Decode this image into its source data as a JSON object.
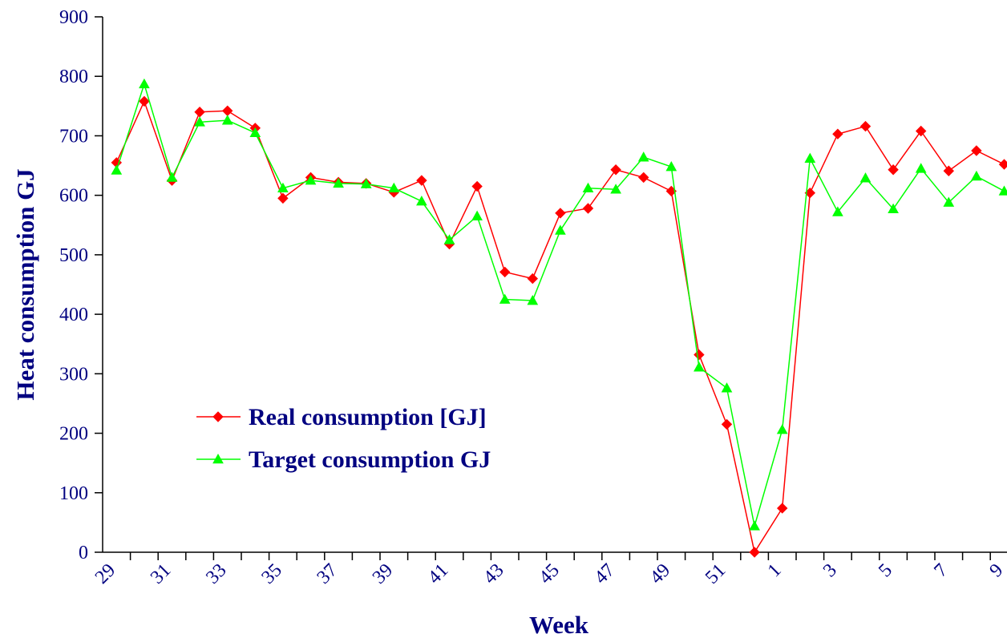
{
  "chart_data": {
    "type": "line",
    "xlabel": "Week",
    "ylabel": "Heat consumption GJ",
    "categories": [
      "29",
      null,
      "31",
      null,
      "33",
      null,
      "35",
      null,
      "37",
      null,
      "39",
      null,
      "41",
      null,
      "43",
      null,
      "45",
      null,
      "47",
      null,
      "49",
      null,
      "51",
      null,
      "1",
      null,
      "3",
      null,
      "5",
      null,
      "7",
      null,
      "9"
    ],
    "series": [
      {
        "name": "Real consumption [GJ]",
        "color": "#ff0000",
        "marker": "diamond",
        "values": [
          655,
          758,
          625,
          740,
          742,
          713,
          595,
          630,
          622,
          620,
          605,
          625,
          518,
          615,
          471,
          460,
          570,
          578,
          643,
          630,
          607,
          332,
          215,
          0,
          74,
          604,
          703,
          716,
          643,
          708,
          641,
          675,
          652
        ]
      },
      {
        "name": "Target consumption GJ",
        "color": "#00ff00",
        "marker": "triangle",
        "values": [
          642,
          787,
          630,
          723,
          726,
          705,
          612,
          625,
          620,
          619,
          612,
          590,
          525,
          565,
          425,
          423,
          541,
          612,
          610,
          664,
          648,
          311,
          276,
          44,
          206,
          662,
          572,
          629,
          577,
          645,
          588,
          632,
          607
        ]
      }
    ],
    "ylim": [
      0,
      900
    ],
    "yticks": [
      0,
      100,
      200,
      300,
      400,
      500,
      600,
      700,
      800,
      900
    ],
    "grid": false,
    "legend": "lower left"
  }
}
